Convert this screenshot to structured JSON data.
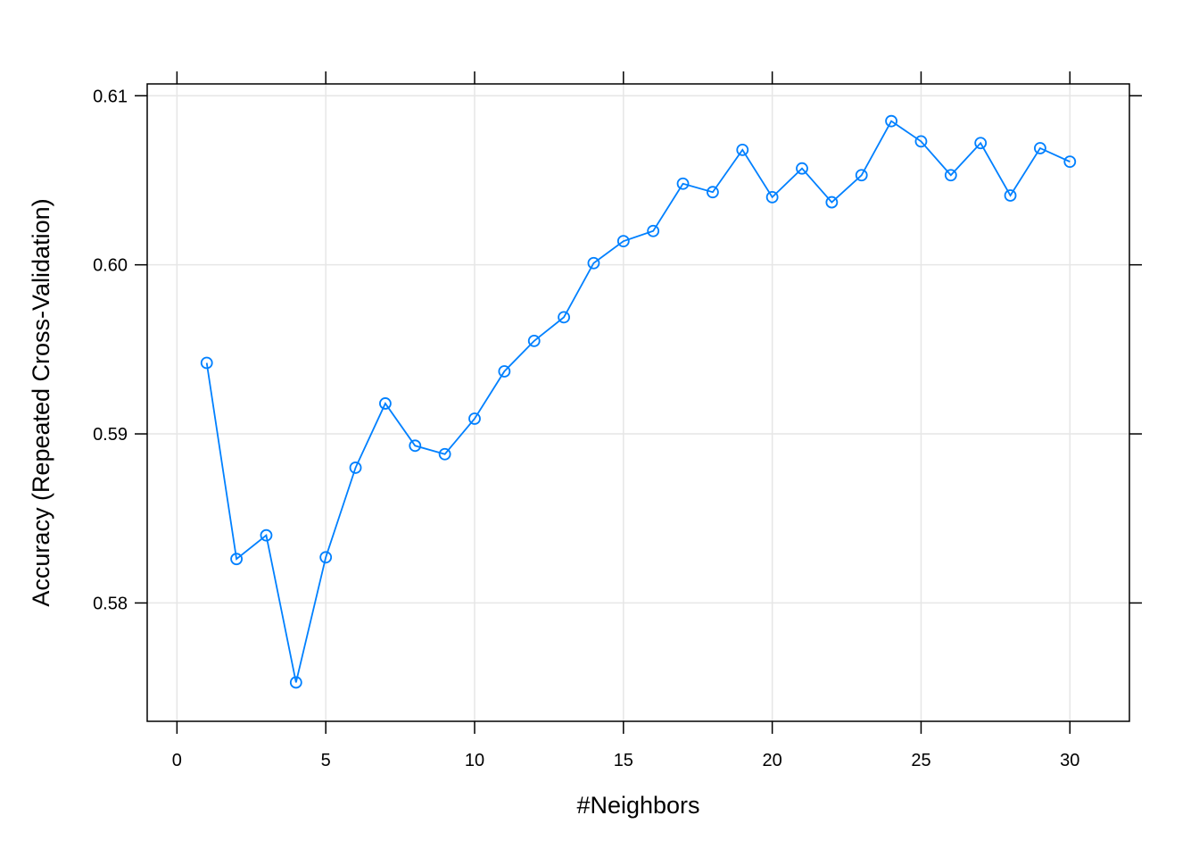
{
  "chart_data": {
    "type": "line",
    "xlabel": "#Neighbors",
    "ylabel": "Accuracy (Repeated Cross-Validation)",
    "xlim": [
      -1,
      32
    ],
    "ylim": [
      0.573,
      0.6107
    ],
    "x_ticks": [
      0,
      5,
      10,
      15,
      20,
      25,
      30
    ],
    "x_tick_labels": [
      "0",
      "5",
      "10",
      "15",
      "20",
      "25",
      "30"
    ],
    "y_ticks": [
      0.58,
      0.59,
      0.6,
      0.61
    ],
    "y_tick_labels": [
      "0.58",
      "0.59",
      "0.60",
      "0.61"
    ],
    "grid": true,
    "series": [
      {
        "color": "#0080ff",
        "marker": "open-circle",
        "x": [
          1,
          2,
          3,
          4,
          5,
          6,
          7,
          8,
          9,
          10,
          11,
          12,
          13,
          14,
          15,
          16,
          17,
          18,
          19,
          20,
          21,
          22,
          23,
          24,
          25,
          26,
          27,
          28,
          29,
          30
        ],
        "y": [
          0.5942,
          0.5826,
          0.584,
          0.5753,
          0.5827,
          0.588,
          0.5918,
          0.5893,
          0.5888,
          0.5909,
          0.5937,
          0.5955,
          0.5969,
          0.6001,
          0.6014,
          0.602,
          0.6048,
          0.6043,
          0.6068,
          0.604,
          0.6057,
          0.6037,
          0.6053,
          0.6085,
          0.6073,
          0.6053,
          0.6072,
          0.6041,
          0.6069,
          0.6061
        ]
      }
    ]
  }
}
